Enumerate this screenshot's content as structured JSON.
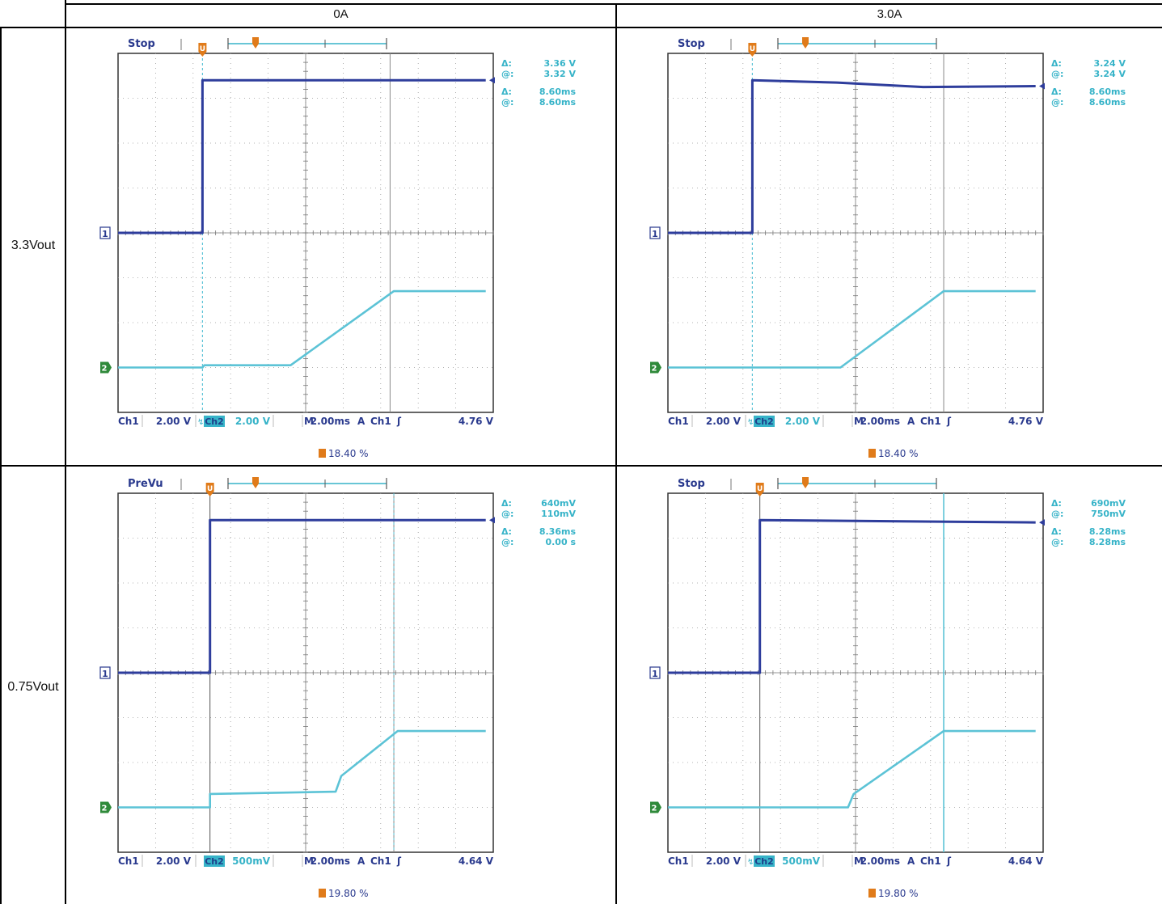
{
  "table": {
    "column_headers": [
      "0A",
      "3.0A"
    ],
    "row_headers": [
      "3.3Vout",
      "0.75Vout"
    ]
  },
  "colors": {
    "ch1": "#2e3d9c",
    "ch2": "#5cc3d6",
    "trigger": "#e07b1a",
    "graticule": "#9a9a9a",
    "label": "#2a3a8e",
    "readout": "#36b3c8"
  },
  "chart_data": [
    {
      "type": "line",
      "row": "3.3Vout",
      "column": "0A",
      "status": "Stop",
      "readouts": [
        {
          "sym": "Δ:",
          "val": "3.36 V"
        },
        {
          "sym": "@:",
          "val": "3.32 V"
        },
        {
          "sym": "Δ:",
          "val": "8.60ms"
        },
        {
          "sym": "@:",
          "val": "8.60ms"
        }
      ],
      "ch1_scale": "2.00 V",
      "ch2_scale": "2.00 V",
      "ch2_prefix": "↯",
      "timebase": "2.00ms",
      "trigger_source": "Ch1",
      "trigger_level": "4.76 V",
      "trigger_position": "18.40 %",
      "xlim": [
        0,
        10
      ],
      "ylim": [
        -4,
        4
      ],
      "ch1_marker_level": 0,
      "ch2_marker_level": -3,
      "cursor_h": [
        2.25,
        7.25
      ],
      "ch1_dashed_cursor": 2.25,
      "series": [
        {
          "values_x": [
            0,
            2.25,
            2.25,
            9.8
          ],
          "values_y": [
            0,
            0,
            3.4,
            3.4
          ]
        },
        {
          "values_x": [
            0,
            2.25,
            2.3,
            4.6,
            7.35,
            9.8
          ],
          "values_y": [
            -3,
            -3,
            -2.95,
            -2.95,
            -1.3,
            -1.3
          ]
        }
      ]
    },
    {
      "type": "line",
      "row": "3.3Vout",
      "column": "3.0A",
      "status": "Stop",
      "readouts": [
        {
          "sym": "Δ:",
          "val": "3.24 V"
        },
        {
          "sym": "@:",
          "val": "3.24 V"
        },
        {
          "sym": "Δ:",
          "val": "8.60ms"
        },
        {
          "sym": "@:",
          "val": "8.60ms"
        }
      ],
      "ch1_scale": "2.00 V",
      "ch2_scale": "2.00 V",
      "ch2_prefix": "↯",
      "timebase": "2.00ms",
      "trigger_source": "Ch1",
      "trigger_level": "4.76 V",
      "trigger_position": "18.40 %",
      "xlim": [
        0,
        10
      ],
      "ylim": [
        -4,
        4
      ],
      "ch1_marker_level": 0,
      "ch2_marker_level": -3,
      "cursor_h": [
        2.25,
        7.35
      ],
      "ch1_dashed_cursor": 2.25,
      "series": [
        {
          "values_x": [
            0,
            2.25,
            2.25,
            4.5,
            6.8,
            9.8
          ],
          "values_y": [
            0,
            0,
            3.4,
            3.35,
            3.25,
            3.27
          ]
        },
        {
          "values_x": [
            0,
            4.6,
            7.35,
            9.8
          ],
          "values_y": [
            -3,
            -3,
            -1.3,
            -1.3
          ]
        }
      ]
    },
    {
      "type": "line",
      "row": "0.75Vout",
      "column": "0A",
      "status": "PreVu",
      "readouts": [
        {
          "sym": "Δ:",
          "val": "640mV"
        },
        {
          "sym": "@:",
          "val": "110mV"
        },
        {
          "sym": "Δ:",
          "val": "8.36ms"
        },
        {
          "sym": "@:",
          "val": "0.00 s"
        }
      ],
      "ch1_scale": "2.00 V",
      "ch2_scale": "500mV",
      "ch2_prefix": "",
      "timebase": "2.00ms",
      "trigger_source": "Ch1",
      "trigger_level": "4.64 V",
      "trigger_position": "19.80 %",
      "xlim": [
        0,
        10
      ],
      "ylim": [
        -4,
        4
      ],
      "ch1_marker_level": 0,
      "ch2_marker_level": -3,
      "cursor_h": [
        2.45,
        7.35
      ],
      "ch1_dashed_cursor": 7.35,
      "series": [
        {
          "values_x": [
            0,
            2.45,
            2.45,
            9.8
          ],
          "values_y": [
            0,
            0,
            3.4,
            3.4
          ]
        },
        {
          "values_x": [
            0,
            2.45,
            2.45,
            5.8,
            5.95,
            7.45,
            9.8
          ],
          "values_y": [
            -3,
            -3,
            -2.7,
            -2.65,
            -2.3,
            -1.3,
            -1.3
          ]
        }
      ]
    },
    {
      "type": "line",
      "row": "0.75Vout",
      "column": "3.0A",
      "status": "Stop",
      "readouts": [
        {
          "sym": "Δ:",
          "val": "690mV"
        },
        {
          "sym": "@:",
          "val": "750mV"
        },
        {
          "sym": "Δ:",
          "val": "8.28ms"
        },
        {
          "sym": "@:",
          "val": "8.28ms"
        }
      ],
      "ch1_scale": "2.00 V",
      "ch2_scale": "500mV",
      "ch2_prefix": "↯",
      "timebase": "2.00ms",
      "trigger_source": "Ch1",
      "trigger_level": "4.64 V",
      "trigger_position": "19.80 %",
      "xlim": [
        0,
        10
      ],
      "ylim": [
        -4,
        4
      ],
      "ch1_marker_level": 0,
      "ch2_marker_level": -3,
      "cursor_h": [
        2.45,
        7.35
      ],
      "ch1_dashed_cursor": null,
      "series": [
        {
          "values_x": [
            0,
            2.45,
            2.45,
            9.8
          ],
          "values_y": [
            0,
            0,
            3.4,
            3.35
          ]
        },
        {
          "values_x": [
            0,
            4.8,
            4.95,
            7.35,
            9.8
          ],
          "values_y": [
            -3,
            -3,
            -2.7,
            -1.3,
            -1.3
          ]
        }
      ]
    }
  ]
}
